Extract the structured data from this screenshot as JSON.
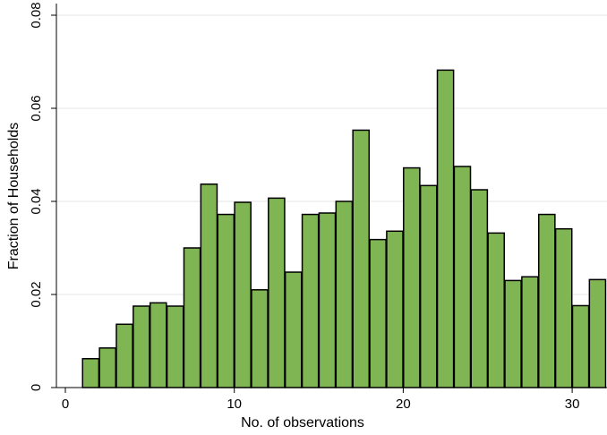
{
  "chart_data": {
    "type": "bar",
    "title": "",
    "xlabel": "No. of observations",
    "ylabel": "Fraction of Households",
    "xlim": [
      -0.5,
      32
    ],
    "ylim": [
      0,
      0.08
    ],
    "xticks": [
      0,
      10,
      20,
      30
    ],
    "yticks": [
      0,
      0.02,
      0.04,
      0.06,
      0.08
    ],
    "ytick_labels": [
      "0",
      "0.02",
      "0.04",
      "0.06",
      "0.08"
    ],
    "grid": "horizontal",
    "bar_color": "#7fb552",
    "bar_edge_color": "#000000",
    "bin_width": 0.96,
    "x": [
      1.5,
      2.5,
      3.5,
      4.5,
      5.5,
      6.5,
      7.5,
      8.5,
      9.5,
      10.5,
      11.5,
      12.5,
      13.5,
      14.5,
      15.5,
      16.5,
      17.5,
      18.5,
      19.5,
      20.5,
      21.5,
      22.5,
      23.5,
      24.5,
      25.5,
      26.5,
      27.5,
      28.5,
      29.5,
      30.5,
      31.5
    ],
    "values": [
      0.0062,
      0.0085,
      0.0136,
      0.0175,
      0.0182,
      0.0175,
      0.03,
      0.0437,
      0.0372,
      0.0398,
      0.021,
      0.0407,
      0.0248,
      0.0372,
      0.0375,
      0.04,
      0.0553,
      0.0318,
      0.0336,
      0.0472,
      0.0434,
      0.0682,
      0.0475,
      0.0425,
      0.0332,
      0.023,
      0.0238,
      0.0372,
      0.0341,
      0.0176,
      0.0232
    ]
  }
}
